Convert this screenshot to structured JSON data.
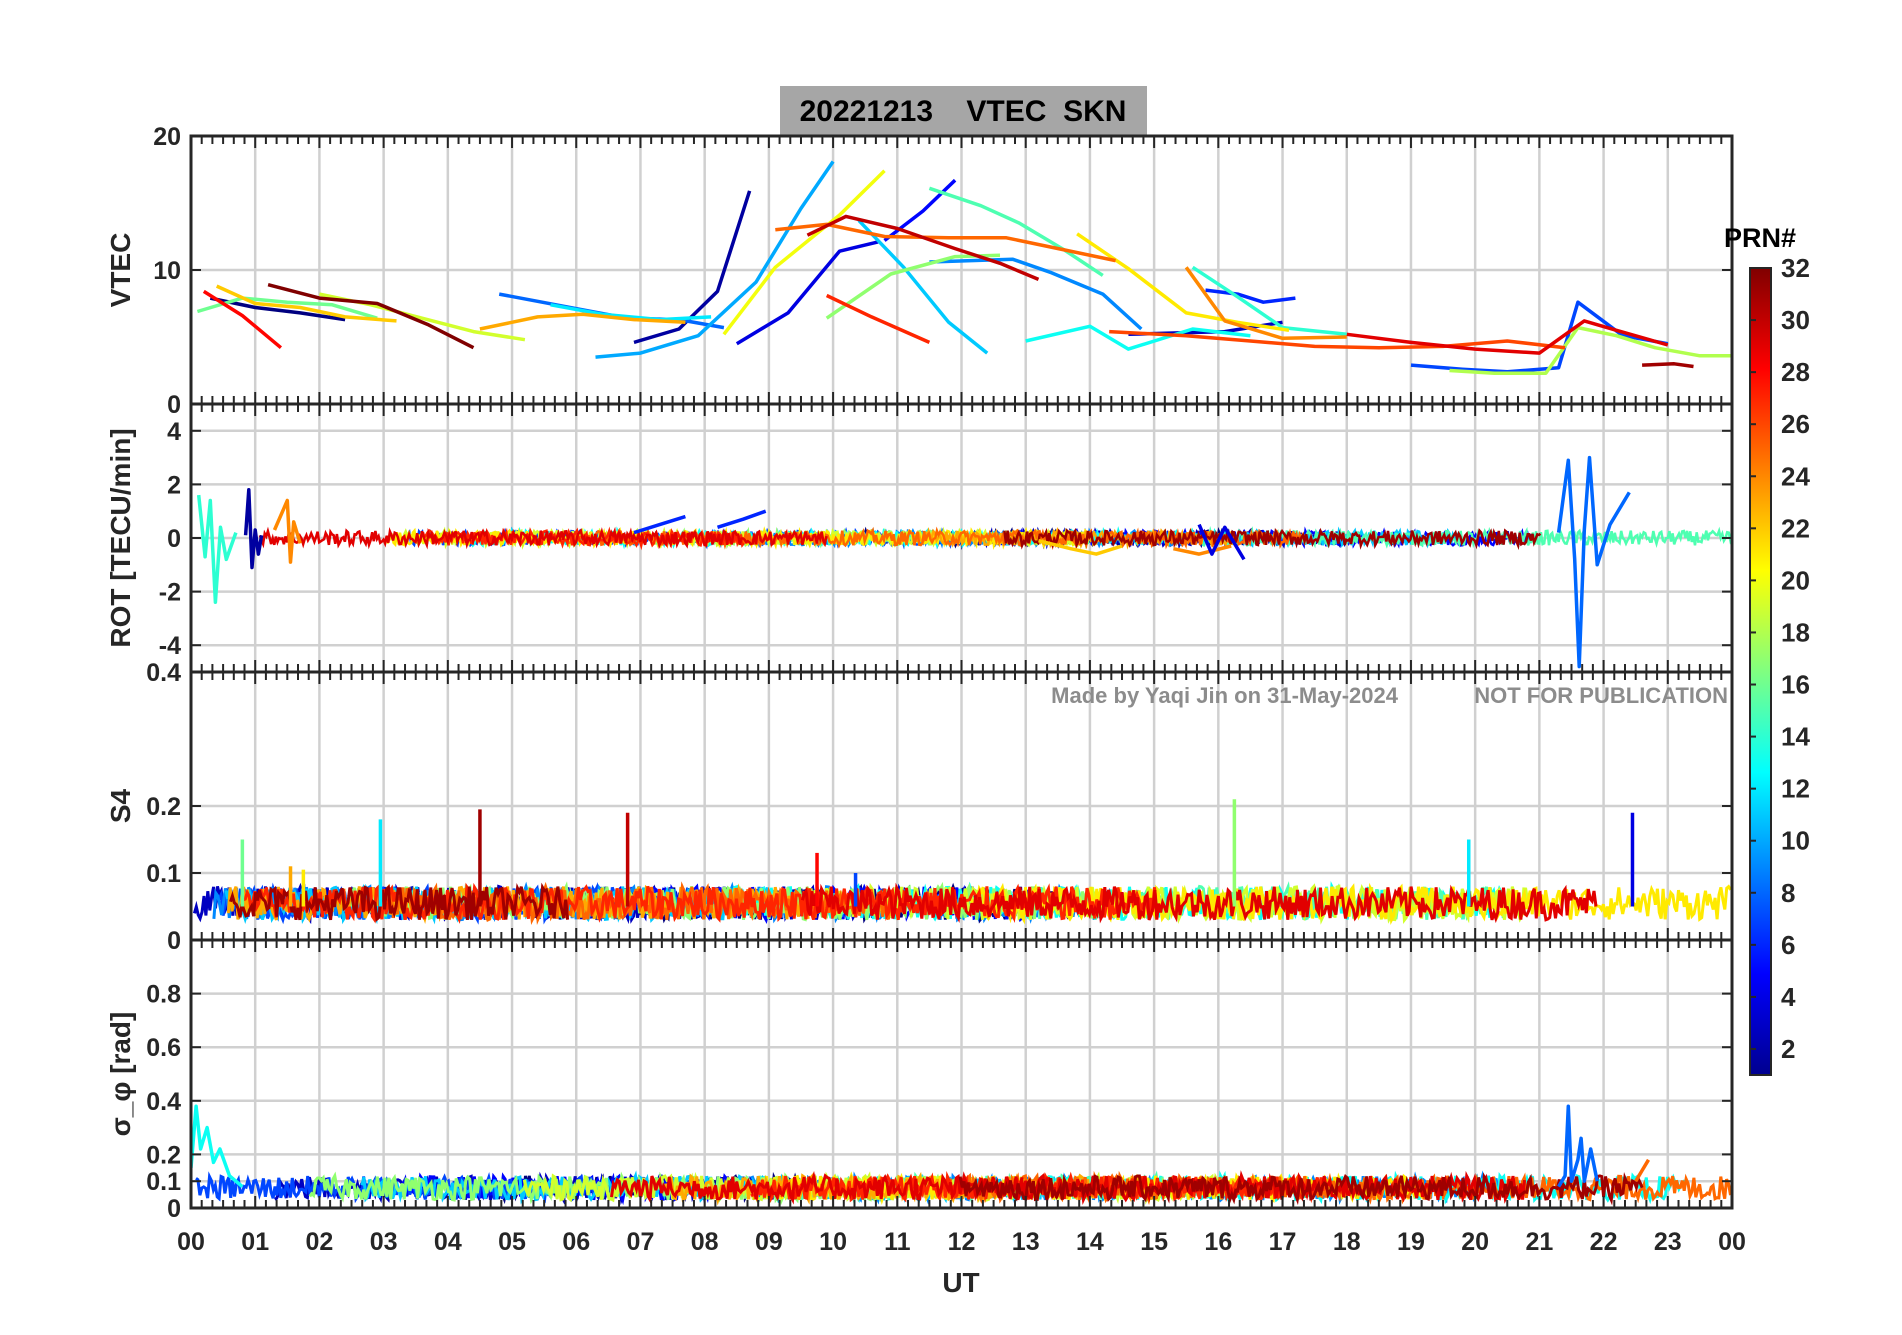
{
  "figure": {
    "title": "20221213    VTEC  SKN",
    "watermark_left": "Made by Yaqi Jin on 31-May-2024",
    "watermark_right": "NOT FOR PUBLICATION",
    "xlabel": "UT",
    "x_ticks": [
      "00",
      "01",
      "02",
      "03",
      "04",
      "05",
      "06",
      "07",
      "08",
      "09",
      "10",
      "11",
      "12",
      "13",
      "14",
      "15",
      "16",
      "17",
      "18",
      "19",
      "20",
      "21",
      "22",
      "23",
      "00"
    ],
    "colors": {
      "background": "#ffffff",
      "axes": "#262626",
      "grid": "#d0d0d0",
      "title_box": "#a6a6a6",
      "watermark": "#8c8c8c"
    }
  },
  "colorbar": {
    "label": "PRN#",
    "range": [
      1,
      32
    ],
    "ticks": [
      "2",
      "4",
      "6",
      "8",
      "10",
      "12",
      "14",
      "16",
      "18",
      "20",
      "22",
      "24",
      "26",
      "28",
      "30",
      "32"
    ],
    "colormap": "jet"
  },
  "chart_data": [
    {
      "type": "line",
      "name": "vtec",
      "ylabel": "VTEC",
      "ylim": [
        0,
        20
      ],
      "ytick_labels": [
        "0",
        "10",
        "20"
      ],
      "xlim": [
        0,
        24
      ],
      "series": [
        {
          "prn": 1,
          "x": [
            0.3,
            1,
            1.7,
            2.4
          ],
          "values": [
            7.9,
            7.2,
            6.8,
            6.3
          ]
        },
        {
          "prn": 2,
          "x": [
            6.9,
            7.6,
            8.2,
            8.7
          ],
          "values": [
            4.6,
            5.6,
            8.4,
            15.9
          ]
        },
        {
          "prn": 3,
          "x": [
            14.6,
            15.3,
            16.1,
            17
          ],
          "values": [
            5.2,
            5.3,
            5.4,
            6.1
          ]
        },
        {
          "prn": 4,
          "x": [
            8.5,
            9.3,
            10.1,
            10.7
          ],
          "values": [
            4.5,
            6.8,
            11.4,
            12.1
          ]
        },
        {
          "prn": 5,
          "x": [
            10.8,
            11.4,
            11.9
          ],
          "values": [
            12.2,
            14.4,
            16.7
          ]
        },
        {
          "prn": 6,
          "x": [
            15.8,
            16.3,
            16.7,
            17.2
          ],
          "values": [
            8.5,
            8.2,
            7.6,
            7.9
          ]
        },
        {
          "prn": 7,
          "x": [
            19,
            19.8,
            20.5,
            21.3,
            21.6,
            22.3,
            23
          ],
          "values": [
            2.9,
            2.6,
            2.4,
            2.7,
            7.6,
            5.1,
            4.5
          ]
        },
        {
          "prn": 8,
          "x": [
            4.8,
            5.8,
            6.8,
            7.6,
            8.3
          ],
          "values": [
            8.2,
            7.3,
            6.4,
            6.3,
            5.7
          ]
        },
        {
          "prn": 9,
          "x": [
            11.5,
            12.8,
            13.4,
            14.2,
            14.8
          ],
          "values": [
            10.6,
            10.8,
            9.8,
            8.2,
            5.6
          ]
        },
        {
          "prn": 10,
          "x": [
            6.3,
            7,
            7.9,
            8.8,
            9.5,
            10
          ],
          "values": [
            3.5,
            3.8,
            5.1,
            9.1,
            14.6,
            18.1
          ]
        },
        {
          "prn": 11,
          "x": [
            10.4,
            11.1,
            11.8,
            12.4
          ],
          "values": [
            13.7,
            10.2,
            6.1,
            3.8
          ]
        },
        {
          "prn": 12,
          "x": [
            5.6,
            6.4,
            7.3,
            8.1
          ],
          "values": [
            7.4,
            6.7,
            6.3,
            6.5
          ]
        },
        {
          "prn": 13,
          "x": [
            13,
            14,
            14.6,
            15.6,
            16.5
          ],
          "values": [
            4.7,
            5.8,
            4.1,
            5.6,
            5.1
          ]
        },
        {
          "prn": 14,
          "x": [
            15.6,
            16.3,
            17,
            18
          ],
          "values": [
            10.2,
            8,
            5.7,
            5.2
          ]
        },
        {
          "prn": 15,
          "x": [
            11.5,
            12.3,
            12.9,
            13.6,
            14.2
          ],
          "values": [
            16.1,
            14.8,
            13.5,
            11.5,
            9.6
          ]
        },
        {
          "prn": 16,
          "x": [
            0.1,
            0.8,
            1.5,
            2.2,
            2.9
          ],
          "values": [
            6.9,
            7.9,
            7.6,
            7.4,
            6.4
          ]
        },
        {
          "prn": 17,
          "x": [
            9.9,
            10.9,
            11.9,
            12.6
          ],
          "values": [
            6.4,
            9.7,
            11,
            11.1
          ]
        },
        {
          "prn": 18,
          "x": [
            19.6,
            20.3,
            21.1,
            21.6,
            22.2,
            22.8,
            23.5,
            24
          ],
          "values": [
            2.5,
            2.3,
            2.3,
            5.7,
            5.1,
            4.2,
            3.6,
            3.6
          ]
        },
        {
          "prn": 19,
          "x": [
            2,
            2.8,
            3.6,
            4.4,
            5.2
          ],
          "values": [
            8.2,
            7.4,
            6.4,
            5.4,
            4.8
          ]
        },
        {
          "prn": 20,
          "x": [
            8.3,
            9.1,
            10.1,
            10.8
          ],
          "values": [
            5.2,
            10.2,
            14.1,
            17.4
          ]
        },
        {
          "prn": 21,
          "x": [
            13.8,
            14.6,
            15.5,
            16.3,
            17.1
          ],
          "values": [
            12.7,
            10.1,
            6.8,
            6.1,
            5.5
          ]
        },
        {
          "prn": 22,
          "x": [
            0.4,
            1,
            1.7,
            2.4,
            3.2
          ],
          "values": [
            8.8,
            7.5,
            7.2,
            6.5,
            6.2
          ]
        },
        {
          "prn": 23,
          "x": [
            4.5,
            5.4,
            6.1,
            6.9,
            7.7
          ],
          "values": [
            5.6,
            6.5,
            6.7,
            6.3,
            6.1
          ]
        },
        {
          "prn": 24,
          "x": [
            15.5,
            16.1,
            17,
            18
          ],
          "values": [
            10.2,
            6.2,
            4.9,
            5
          ]
        },
        {
          "prn": 25,
          "x": [
            9.1,
            9.9,
            10.8,
            11.8,
            12.7,
            13.6,
            14.4
          ],
          "values": [
            13,
            13.4,
            12.5,
            12.4,
            12.4,
            11.5,
            10.7
          ]
        },
        {
          "prn": 26,
          "x": [
            14.3,
            15.5,
            16.5,
            17.5,
            18.5,
            19.5,
            20.5,
            21.4
          ],
          "values": [
            5.4,
            5.1,
            4.7,
            4.3,
            4.2,
            4.3,
            4.7,
            4.2
          ]
        },
        {
          "prn": 27,
          "x": [
            9.9,
            10.6,
            11.5
          ],
          "values": [
            8.1,
            6.5,
            4.6
          ]
        },
        {
          "prn": 28,
          "x": [
            0.2,
            0.8,
            1.4
          ],
          "values": [
            8.4,
            6.6,
            4.2
          ]
        },
        {
          "prn": 29,
          "x": [
            18,
            19,
            20,
            21,
            21.7,
            22.2,
            23
          ],
          "values": [
            5.2,
            4.6,
            4.1,
            3.8,
            6.2,
            5.5,
            4.4
          ]
        },
        {
          "prn": 30,
          "x": [
            9.6,
            10.2,
            11,
            11.9,
            12.6,
            13.2
          ],
          "values": [
            12.6,
            14,
            13.1,
            11.6,
            10.5,
            9.3
          ]
        },
        {
          "prn": 31,
          "x": [
            22.6,
            23.1,
            23.4
          ],
          "values": [
            2.9,
            3,
            2.8
          ]
        },
        {
          "prn": 32,
          "x": [
            1.2,
            2,
            2.9,
            3.7,
            4.4
          ],
          "values": [
            8.9,
            7.9,
            7.5,
            5.9,
            4.2
          ]
        }
      ]
    },
    {
      "type": "line",
      "name": "rot",
      "ylabel": "ROT [TECU/min]",
      "ylim": [
        -5,
        5
      ],
      "ytick_labels": [
        "-4",
        "-2",
        "0",
        "2",
        "4"
      ],
      "xlim": [
        0,
        24
      ],
      "series": [
        {
          "prn": 2,
          "x": [
            0.85,
            0.9,
            0.95,
            1,
            1.05,
            1.1
          ],
          "values": [
            0.1,
            1.8,
            -1.1,
            0.3,
            -0.6,
            0.1
          ]
        },
        {
          "prn": 6,
          "x": [
            6.9,
            7.3,
            7.7
          ],
          "values": [
            0.2,
            0.5,
            0.8
          ]
        },
        {
          "prn": 6,
          "x": [
            8.2,
            8.6,
            8.95
          ],
          "values": [
            0.4,
            0.7,
            1
          ]
        },
        {
          "prn": 8,
          "x": [
            21.3,
            21.45,
            21.55,
            21.62,
            21.7,
            21.78,
            21.9,
            22.1,
            22.4
          ],
          "values": [
            0.2,
            2.9,
            -0.8,
            -4.8,
            0.3,
            3,
            -1,
            0.5,
            1.7
          ]
        },
        {
          "prn": 14,
          "x": [
            0.12,
            0.22,
            0.3,
            0.38,
            0.46,
            0.55,
            0.7
          ],
          "values": [
            1.6,
            -0.7,
            1.4,
            -2.4,
            0.4,
            -0.8,
            0.2
          ]
        },
        {
          "prn": 22,
          "x": [
            13.2,
            13.7,
            14.1,
            14.5
          ],
          "values": [
            -0.1,
            -0.4,
            -0.6,
            -0.3
          ]
        },
        {
          "prn": 24,
          "x": [
            1.3,
            1.5,
            1.55,
            1.6,
            1.7
          ],
          "values": [
            0.3,
            1.4,
            -0.9,
            0.6,
            -0.2
          ]
        },
        {
          "prn": 24,
          "x": [
            15.3,
            15.7,
            16.2
          ],
          "values": [
            -0.4,
            -0.6,
            -0.3
          ]
        },
        {
          "prn": 4,
          "x": [
            15.7,
            15.9,
            16.1,
            16.4
          ],
          "values": [
            0.5,
            -0.6,
            0.4,
            -0.8
          ]
        }
      ]
    },
    {
      "type": "line",
      "name": "s4",
      "ylabel": "S4",
      "ylim": [
        0,
        0.4
      ],
      "ytick_labels": [
        "0",
        "0.1",
        "0.2",
        "0.4"
      ],
      "xlim": [
        0,
        24
      ],
      "spikes": [
        {
          "prn": 16,
          "x": 0.8,
          "value": 0.15
        },
        {
          "prn": 23,
          "x": 1.55,
          "value": 0.11
        },
        {
          "prn": 21,
          "x": 1.75,
          "value": 0.105
        },
        {
          "prn": 12,
          "x": 2.95,
          "value": 0.18
        },
        {
          "prn": 31,
          "x": 4.5,
          "value": 0.195
        },
        {
          "prn": 30,
          "x": 6.8,
          "value": 0.19
        },
        {
          "prn": 28,
          "x": 9.75,
          "value": 0.13
        },
        {
          "prn": 7,
          "x": 10.35,
          "value": 0.1
        },
        {
          "prn": 17,
          "x": 16.25,
          "value": 0.21
        },
        {
          "prn": 12,
          "x": 19.9,
          "value": 0.15
        },
        {
          "prn": 4,
          "x": 22.45,
          "value": 0.19
        }
      ],
      "baseline_band": [
        0.03,
        0.08
      ]
    },
    {
      "type": "line",
      "name": "sigma_phi",
      "ylabel": "σ_φ [rad]",
      "ylim": [
        0,
        1
      ],
      "ytick_labels": [
        "0",
        "0.1",
        "0.2",
        "0.4",
        "0.6",
        "0.8"
      ],
      "xlim": [
        0,
        24
      ],
      "series": [
        {
          "prn": 13,
          "x": [
            0,
            0.08,
            0.15,
            0.25,
            0.35,
            0.45,
            0.6,
            0.8
          ],
          "values": [
            0.15,
            0.38,
            0.22,
            0.3,
            0.17,
            0.22,
            0.12,
            0.08
          ]
        },
        {
          "prn": 8,
          "x": [
            21.3,
            21.4,
            21.45,
            21.5,
            21.6,
            21.65,
            21.7,
            21.8,
            21.9
          ],
          "values": [
            0.08,
            0.12,
            0.38,
            0.1,
            0.18,
            0.26,
            0.1,
            0.22,
            0.1
          ]
        },
        {
          "prn": 25,
          "x": [
            22.5,
            22.6,
            22.7
          ],
          "values": [
            0.1,
            0.14,
            0.18
          ]
        }
      ],
      "baseline_band": [
        0.03,
        0.12
      ]
    }
  ]
}
